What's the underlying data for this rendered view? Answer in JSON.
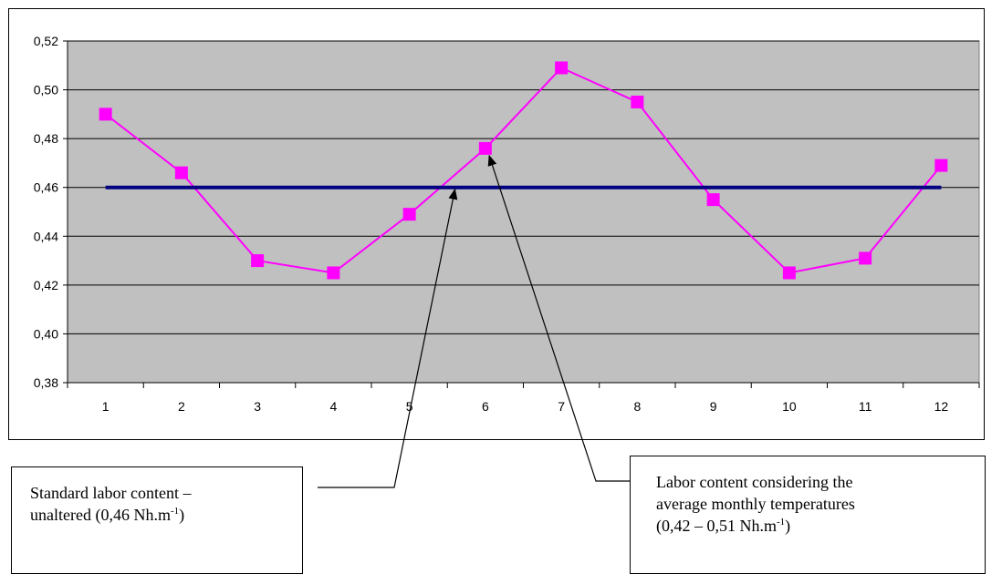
{
  "chart_data": {
    "type": "line",
    "x": [
      1,
      2,
      3,
      4,
      5,
      6,
      7,
      8,
      9,
      10,
      11,
      12
    ],
    "series": [
      {
        "values": [
          0.49,
          0.466,
          0.43,
          0.425,
          0.449,
          0.476,
          0.509,
          0.495,
          0.455,
          0.425,
          0.431,
          0.469
        ],
        "color": "#ff00ff",
        "marker": "square"
      },
      {
        "values": [
          0.46,
          0.46,
          0.46,
          0.46,
          0.46,
          0.46,
          0.46,
          0.46,
          0.46,
          0.46,
          0.46,
          0.46
        ],
        "color": "#000080",
        "marker": "none"
      }
    ],
    "ylim": [
      0.38,
      0.52
    ],
    "yticks": [
      "0,38",
      "0,40",
      "0,42",
      "0,44",
      "0,46",
      "0,48",
      "0,50",
      "0,52"
    ],
    "xticks": [
      "1",
      "2",
      "3",
      "4",
      "5",
      "6",
      "7",
      "8",
      "9",
      "10",
      "11",
      "12"
    ],
    "grid": "horizontal",
    "plot_background": "#c0c0c0",
    "annotations": [
      {
        "lines": [
          "Standard labor content –",
          "unaltered (0,46 Nh.m"
        ],
        "superscript": "-1",
        "suffix": ")",
        "target_x": 5.6,
        "target_y": 0.46
      },
      {
        "lines": [
          "Labor content considering the",
          "average monthly temperatures",
          " (0,42 – 0,51 Nh.m"
        ],
        "superscript": "-1",
        "suffix": ")",
        "target_x": 6.05,
        "target_y": 0.476
      }
    ]
  }
}
